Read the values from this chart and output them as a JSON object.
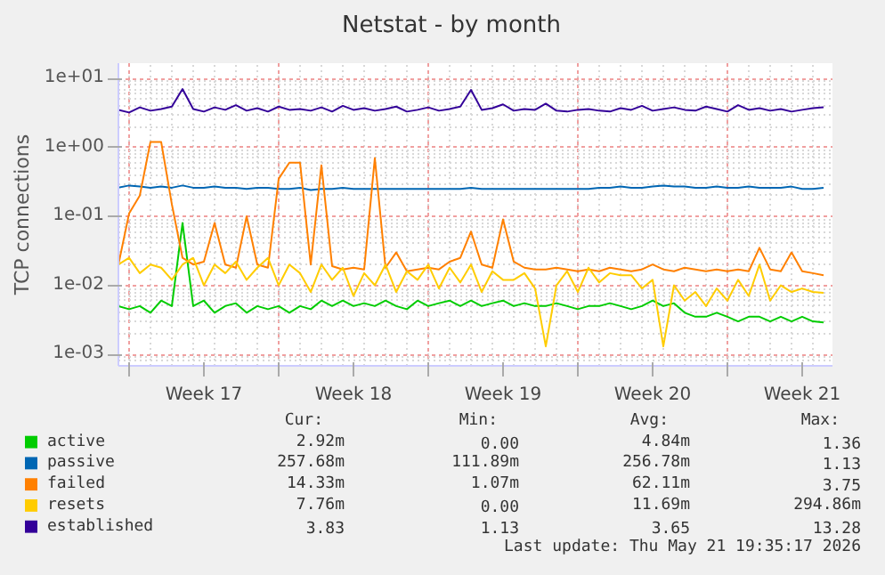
{
  "chart_data": {
    "type": "line",
    "title": "Netstat - by month",
    "ylabel": "TCP connections",
    "log": true,
    "grid": true,
    "legend": "bottom",
    "ylim": [
      0.00068,
      16.6
    ],
    "yticks": [
      {
        "value": 0.001,
        "label": "1e-03"
      },
      {
        "value": 0.01,
        "label": "1e-02"
      },
      {
        "value": 0.1,
        "label": "1e-01"
      },
      {
        "value": 1,
        "label": "1e+00"
      },
      {
        "value": 10,
        "label": "1e+01"
      }
    ],
    "xlim": [
      "2026-04-18T12:00",
      "2026-05-21T22:00"
    ],
    "xticks": [
      {
        "value": "2026-04-19",
        "label": null
      },
      {
        "value": "2026-04-22T12:00",
        "label": "Week 17"
      },
      {
        "value": "2026-04-26",
        "label": null
      },
      {
        "value": "2026-04-29T12:00",
        "label": "Week 18"
      },
      {
        "value": "2026-05-03",
        "label": null
      },
      {
        "value": "2026-05-06T12:00",
        "label": "Week 19"
      },
      {
        "value": "2026-05-10",
        "label": null
      },
      {
        "value": "2026-05-13T12:00",
        "label": "Week 20"
      },
      {
        "value": "2026-05-17",
        "label": null
      },
      {
        "value": "2026-05-20T12:00",
        "label": "Week 21"
      }
    ],
    "x": [
      "2026-04-18T12:00",
      "2026-04-19T00:00",
      "2026-04-19T12:00",
      "2026-04-20T00:00",
      "2026-04-20T12:00",
      "2026-04-21T00:00",
      "2026-04-21T12:00",
      "2026-04-22T00:00",
      "2026-04-22T12:00",
      "2026-04-23T00:00",
      "2026-04-23T12:00",
      "2026-04-24T00:00",
      "2026-04-24T12:00",
      "2026-04-25T00:00",
      "2026-04-25T12:00",
      "2026-04-26T00:00",
      "2026-04-26T12:00",
      "2026-04-27T00:00",
      "2026-04-27T12:00",
      "2026-04-28T00:00",
      "2026-04-28T12:00",
      "2026-04-29T00:00",
      "2026-04-29T12:00",
      "2026-04-30T00:00",
      "2026-04-30T12:00",
      "2026-05-01T00:00",
      "2026-05-01T12:00",
      "2026-05-02T00:00",
      "2026-05-02T12:00",
      "2026-05-03T00:00",
      "2026-05-03T12:00",
      "2026-05-04T00:00",
      "2026-05-04T12:00",
      "2026-05-05T00:00",
      "2026-05-05T12:00",
      "2026-05-06T00:00",
      "2026-05-06T12:00",
      "2026-05-07T00:00",
      "2026-05-07T12:00",
      "2026-05-08T00:00",
      "2026-05-08T12:00",
      "2026-05-09T00:00",
      "2026-05-09T12:00",
      "2026-05-10T00:00",
      "2026-05-10T12:00",
      "2026-05-11T00:00",
      "2026-05-11T12:00",
      "2026-05-12T00:00",
      "2026-05-12T12:00",
      "2026-05-13T00:00",
      "2026-05-13T12:00",
      "2026-05-14T00:00",
      "2026-05-14T12:00",
      "2026-05-15T00:00",
      "2026-05-15T12:00",
      "2026-05-16T00:00",
      "2026-05-16T12:00",
      "2026-05-17T00:00",
      "2026-05-17T12:00",
      "2026-05-18T00:00",
      "2026-05-18T12:00",
      "2026-05-19T00:00",
      "2026-05-19T12:00",
      "2026-05-20T00:00",
      "2026-05-20T12:00",
      "2026-05-21T00:00",
      "2026-05-21T12:00"
    ],
    "series": [
      {
        "name": "active",
        "color": "#00cc00",
        "values": [
          0.005,
          0.0045,
          0.005,
          0.004,
          0.006,
          0.005,
          0.08,
          0.005,
          0.006,
          0.004,
          0.005,
          0.0055,
          0.004,
          0.005,
          0.0045,
          0.005,
          0.004,
          0.005,
          0.0045,
          0.006,
          0.005,
          0.006,
          0.005,
          0.0055,
          0.005,
          0.006,
          0.005,
          0.0045,
          0.006,
          0.005,
          0.0055,
          0.006,
          0.005,
          0.006,
          0.005,
          0.0055,
          0.006,
          0.005,
          0.0055,
          0.005,
          0.005,
          0.0055,
          0.005,
          0.0045,
          0.005,
          0.005,
          0.0055,
          0.005,
          0.0045,
          0.005,
          0.006,
          0.005,
          0.0055,
          0.004,
          0.0035,
          0.0035,
          0.004,
          0.0035,
          0.003,
          0.0035,
          0.0035,
          0.003,
          0.0035,
          0.003,
          0.0035,
          0.003,
          0.0029
        ]
      },
      {
        "name": "passive",
        "color": "#0066b3",
        "values": [
          0.26,
          0.28,
          0.27,
          0.26,
          0.27,
          0.26,
          0.28,
          0.26,
          0.26,
          0.27,
          0.26,
          0.26,
          0.25,
          0.26,
          0.26,
          0.25,
          0.25,
          0.26,
          0.24,
          0.25,
          0.25,
          0.26,
          0.25,
          0.25,
          0.25,
          0.25,
          0.25,
          0.25,
          0.25,
          0.25,
          0.25,
          0.25,
          0.25,
          0.26,
          0.25,
          0.25,
          0.25,
          0.25,
          0.25,
          0.25,
          0.25,
          0.25,
          0.25,
          0.25,
          0.25,
          0.26,
          0.26,
          0.27,
          0.26,
          0.26,
          0.27,
          0.28,
          0.27,
          0.27,
          0.26,
          0.26,
          0.27,
          0.26,
          0.26,
          0.27,
          0.26,
          0.26,
          0.26,
          0.27,
          0.25,
          0.25,
          0.26
        ]
      },
      {
        "name": "failed",
        "color": "#ff8000",
        "values": [
          0.02,
          0.11,
          0.2,
          1.2,
          1.2,
          0.15,
          0.025,
          0.02,
          0.022,
          0.08,
          0.02,
          0.018,
          0.1,
          0.02,
          0.018,
          0.35,
          0.6,
          0.6,
          0.02,
          0.55,
          0.019,
          0.017,
          0.018,
          0.017,
          0.7,
          0.018,
          0.03,
          0.016,
          0.017,
          0.018,
          0.017,
          0.022,
          0.025,
          0.06,
          0.02,
          0.018,
          0.09,
          0.022,
          0.018,
          0.017,
          0.017,
          0.018,
          0.017,
          0.016,
          0.017,
          0.016,
          0.018,
          0.017,
          0.016,
          0.017,
          0.02,
          0.017,
          0.016,
          0.018,
          0.017,
          0.016,
          0.017,
          0.016,
          0.017,
          0.016,
          0.035,
          0.017,
          0.016,
          0.03,
          0.016,
          0.015,
          0.014
        ]
      },
      {
        "name": "resets",
        "color": "#ffcc00",
        "values": [
          0.02,
          0.025,
          0.015,
          0.02,
          0.018,
          0.012,
          0.02,
          0.025,
          0.01,
          0.02,
          0.015,
          0.022,
          0.012,
          0.018,
          0.025,
          0.01,
          0.02,
          0.015,
          0.008,
          0.02,
          0.012,
          0.018,
          0.007,
          0.015,
          0.01,
          0.02,
          0.008,
          0.016,
          0.012,
          0.02,
          0.009,
          0.018,
          0.011,
          0.02,
          0.008,
          0.016,
          0.012,
          0.012,
          0.015,
          0.009,
          0.0013,
          0.01,
          0.016,
          0.008,
          0.018,
          0.011,
          0.015,
          0.014,
          0.014,
          0.009,
          0.012,
          0.0013,
          0.01,
          0.006,
          0.008,
          0.005,
          0.009,
          0.006,
          0.012,
          0.007,
          0.02,
          0.006,
          0.01,
          0.008,
          0.009,
          0.008,
          0.0078
        ]
      },
      {
        "name": "established",
        "color": "#330099",
        "values": [
          3.5,
          3.2,
          3.8,
          3.4,
          3.6,
          3.9,
          7.0,
          3.6,
          3.3,
          3.8,
          3.5,
          4.1,
          3.4,
          3.7,
          3.3,
          3.9,
          3.5,
          3.6,
          3.4,
          3.8,
          3.3,
          4.0,
          3.5,
          3.7,
          3.4,
          3.6,
          3.9,
          3.3,
          3.5,
          3.8,
          3.4,
          3.6,
          3.9,
          6.8,
          3.5,
          3.7,
          4.2,
          3.4,
          3.6,
          3.5,
          4.3,
          3.4,
          3.3,
          3.5,
          3.6,
          3.4,
          3.3,
          3.7,
          3.5,
          4.0,
          3.4,
          3.6,
          3.8,
          3.5,
          3.4,
          3.9,
          3.6,
          3.3,
          4.1,
          3.5,
          3.7,
          3.4,
          3.6,
          3.3,
          3.5,
          3.7,
          3.8
        ]
      }
    ],
    "annotations": [
      "Cur:",
      "Min:",
      "Avg:",
      "Max:",
      "2.92m",
      "0.00",
      "4.84m",
      "1.36",
      "257.68m",
      "111.89m",
      "256.78m",
      "1.13",
      "14.33m",
      "1.07m",
      "62.11m",
      "3.75",
      "7.76m",
      "0.00",
      "11.69m",
      "294.86m",
      "3.83",
      "1.13",
      "3.65",
      "13.28",
      "Last update: Thu May 21 19:35:17 2026"
    ]
  }
}
